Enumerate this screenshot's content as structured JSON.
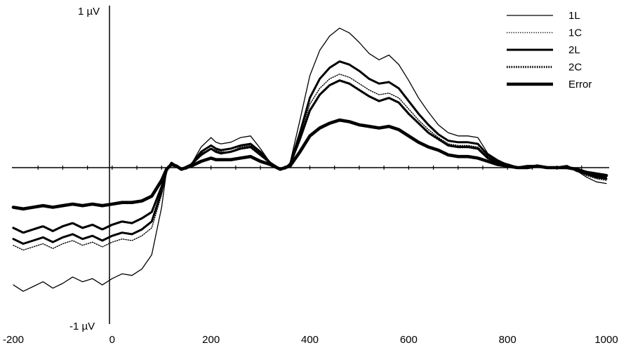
{
  "chart_data": {
    "type": "line",
    "title": "",
    "xlabel": "",
    "ylabel": "",
    "xlim": [
      -200,
      1000
    ],
    "ylim": [
      -1,
      1
    ],
    "y_top_label": "1 µV",
    "y_bottom_label": "-1 µV",
    "x_tick_labels": [
      "-200",
      "0",
      "200",
      "400",
      "600",
      "800",
      "1000"
    ],
    "x_tick_values": [
      -200,
      0,
      200,
      400,
      600,
      800,
      1000
    ],
    "grid": false,
    "legend_position": "top-right",
    "series": [
      {
        "name": "1L",
        "style": "thin-solid",
        "x": [
          -200,
          -180,
          -160,
          -140,
          -120,
          -100,
          -80,
          -60,
          -40,
          -20,
          0,
          20,
          40,
          60,
          80,
          100,
          110,
          120,
          130,
          140,
          160,
          180,
          200,
          210,
          220,
          240,
          260,
          280,
          300,
          320,
          340,
          350,
          360,
          380,
          400,
          420,
          440,
          460,
          480,
          500,
          520,
          540,
          560,
          580,
          600,
          620,
          640,
          660,
          680,
          700,
          720,
          740,
          760,
          780,
          800,
          820,
          840,
          860,
          880,
          900,
          920,
          940,
          960,
          980,
          1000
        ],
        "y": [
          -0.74,
          -0.78,
          -0.75,
          -0.72,
          -0.76,
          -0.73,
          -0.69,
          -0.72,
          -0.7,
          -0.74,
          -0.7,
          -0.67,
          -0.68,
          -0.64,
          -0.55,
          -0.25,
          -0.02,
          0.03,
          0.01,
          -0.01,
          0.02,
          0.13,
          0.19,
          0.16,
          0.15,
          0.16,
          0.19,
          0.2,
          0.12,
          0.03,
          -0.01,
          0.0,
          0.03,
          0.3,
          0.58,
          0.74,
          0.83,
          0.88,
          0.85,
          0.79,
          0.72,
          0.68,
          0.71,
          0.65,
          0.55,
          0.44,
          0.35,
          0.27,
          0.22,
          0.2,
          0.2,
          0.19,
          0.09,
          0.05,
          0.02,
          0.0,
          0.01,
          0.01,
          0.0,
          0.0,
          0.01,
          -0.02,
          -0.06,
          -0.09,
          -0.1
        ]
      },
      {
        "name": "1C",
        "style": "thin-dotted",
        "x": [
          -200,
          -180,
          -160,
          -140,
          -120,
          -100,
          -80,
          -60,
          -40,
          -20,
          0,
          20,
          40,
          60,
          80,
          100,
          110,
          120,
          130,
          140,
          160,
          180,
          200,
          210,
          220,
          240,
          260,
          280,
          300,
          320,
          340,
          350,
          360,
          380,
          400,
          420,
          440,
          460,
          480,
          500,
          520,
          540,
          560,
          580,
          600,
          620,
          640,
          660,
          680,
          700,
          720,
          740,
          760,
          780,
          800,
          820,
          840,
          860,
          880,
          900,
          920,
          940,
          960,
          980,
          1000
        ],
        "y": [
          -0.49,
          -0.52,
          -0.5,
          -0.48,
          -0.51,
          -0.48,
          -0.46,
          -0.49,
          -0.47,
          -0.5,
          -0.47,
          -0.45,
          -0.46,
          -0.43,
          -0.38,
          -0.17,
          -0.02,
          0.03,
          0.01,
          -0.01,
          0.02,
          0.09,
          0.12,
          0.11,
          0.1,
          0.1,
          0.13,
          0.14,
          0.09,
          0.03,
          -0.01,
          0.0,
          0.02,
          0.2,
          0.4,
          0.5,
          0.56,
          0.59,
          0.57,
          0.53,
          0.49,
          0.46,
          0.47,
          0.44,
          0.37,
          0.3,
          0.24,
          0.19,
          0.15,
          0.14,
          0.14,
          0.13,
          0.07,
          0.04,
          0.02,
          0.0,
          0.01,
          0.01,
          0.0,
          0.0,
          0.01,
          -0.02,
          -0.05,
          -0.07,
          -0.08
        ]
      },
      {
        "name": "2L",
        "style": "medium-solid",
        "x": [
          -200,
          -180,
          -160,
          -140,
          -120,
          -100,
          -80,
          -60,
          -40,
          -20,
          0,
          20,
          40,
          60,
          80,
          100,
          110,
          120,
          130,
          140,
          160,
          180,
          200,
          210,
          220,
          240,
          260,
          280,
          300,
          320,
          340,
          350,
          360,
          380,
          400,
          420,
          440,
          460,
          480,
          500,
          520,
          540,
          560,
          580,
          600,
          620,
          640,
          660,
          680,
          700,
          720,
          740,
          760,
          780,
          800,
          820,
          840,
          860,
          880,
          900,
          920,
          940,
          960,
          980,
          1000
        ],
        "y": [
          -0.45,
          -0.48,
          -0.46,
          -0.44,
          -0.47,
          -0.44,
          -0.42,
          -0.45,
          -0.43,
          -0.46,
          -0.43,
          -0.41,
          -0.42,
          -0.39,
          -0.34,
          -0.15,
          -0.02,
          0.03,
          0.01,
          -0.01,
          0.02,
          0.1,
          0.14,
          0.12,
          0.11,
          0.12,
          0.14,
          0.15,
          0.1,
          0.03,
          -0.01,
          0.0,
          0.02,
          0.22,
          0.44,
          0.56,
          0.63,
          0.67,
          0.65,
          0.61,
          0.56,
          0.53,
          0.54,
          0.5,
          0.42,
          0.34,
          0.27,
          0.21,
          0.17,
          0.16,
          0.16,
          0.15,
          0.08,
          0.04,
          0.02,
          0.0,
          0.01,
          0.01,
          0.0,
          0.0,
          0.01,
          -0.02,
          -0.04,
          -0.06,
          -0.07
        ]
      },
      {
        "name": "2C",
        "style": "medium-dotted",
        "x": [
          -200,
          -180,
          -160,
          -140,
          -120,
          -100,
          -80,
          -60,
          -40,
          -20,
          0,
          20,
          40,
          60,
          80,
          100,
          110,
          120,
          130,
          140,
          160,
          180,
          200,
          210,
          220,
          240,
          260,
          280,
          300,
          320,
          340,
          350,
          360,
          380,
          400,
          420,
          440,
          460,
          480,
          500,
          520,
          540,
          560,
          580,
          600,
          620,
          640,
          660,
          680,
          700,
          720,
          740,
          760,
          780,
          800,
          820,
          840,
          860,
          880,
          900,
          920,
          940,
          960,
          980,
          1000
        ],
        "y": [
          -0.38,
          -0.41,
          -0.39,
          -0.37,
          -0.4,
          -0.37,
          -0.35,
          -0.38,
          -0.36,
          -0.39,
          -0.36,
          -0.34,
          -0.35,
          -0.32,
          -0.28,
          -0.12,
          -0.02,
          0.03,
          0.01,
          -0.01,
          0.02,
          0.08,
          0.12,
          0.1,
          0.09,
          0.1,
          0.12,
          0.13,
          0.08,
          0.03,
          -0.01,
          0.0,
          0.02,
          0.18,
          0.36,
          0.46,
          0.52,
          0.55,
          0.53,
          0.49,
          0.45,
          0.42,
          0.44,
          0.41,
          0.34,
          0.28,
          0.22,
          0.18,
          0.14,
          0.13,
          0.13,
          0.12,
          0.06,
          0.03,
          0.02,
          0.0,
          0.01,
          0.01,
          0.0,
          0.0,
          0.01,
          -0.02,
          -0.04,
          -0.05,
          -0.06
        ]
      },
      {
        "name": "Error",
        "style": "thick-solid",
        "x": [
          -200,
          -180,
          -160,
          -140,
          -120,
          -100,
          -80,
          -60,
          -40,
          -20,
          0,
          20,
          40,
          60,
          80,
          100,
          110,
          120,
          130,
          140,
          160,
          180,
          200,
          210,
          220,
          240,
          260,
          280,
          300,
          320,
          340,
          350,
          360,
          380,
          400,
          420,
          440,
          460,
          480,
          500,
          520,
          540,
          560,
          580,
          600,
          620,
          640,
          660,
          680,
          700,
          720,
          740,
          760,
          780,
          800,
          820,
          840,
          860,
          880,
          900,
          920,
          940,
          960,
          980,
          1000
        ],
        "y": [
          -0.25,
          -0.26,
          -0.25,
          -0.24,
          -0.25,
          -0.24,
          -0.23,
          -0.24,
          -0.23,
          -0.24,
          -0.23,
          -0.22,
          -0.22,
          -0.21,
          -0.18,
          -0.08,
          -0.01,
          0.02,
          0.01,
          -0.01,
          0.01,
          0.04,
          0.06,
          0.05,
          0.05,
          0.05,
          0.06,
          0.07,
          0.04,
          0.02,
          -0.01,
          0.0,
          0.01,
          0.1,
          0.2,
          0.25,
          0.28,
          0.3,
          0.29,
          0.27,
          0.26,
          0.25,
          0.26,
          0.24,
          0.2,
          0.16,
          0.13,
          0.11,
          0.08,
          0.07,
          0.07,
          0.06,
          0.04,
          0.02,
          0.01,
          0.0,
          0.0,
          0.01,
          0.0,
          0.0,
          0.0,
          -0.01,
          -0.03,
          -0.04,
          -0.05
        ]
      }
    ]
  }
}
